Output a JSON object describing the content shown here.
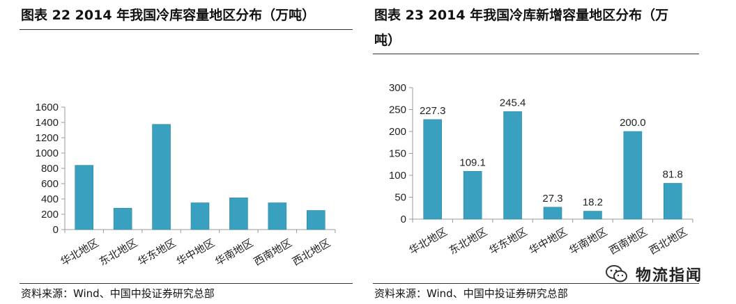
{
  "panels": [
    {
      "title_line1": "图表  22 2014 年我国冷库容量地区分布（万吨）",
      "title_line2": "",
      "source": "资料来源：Wind、中国中投证券研究总部"
    },
    {
      "title_line1": "图表  23  2014  年我国冷库新增容量地区分布（万",
      "title_line2": "吨）",
      "source": "资料来源：Wind、中国中投证券研究总部"
    }
  ],
  "watermark": {
    "text": "物流指闻",
    "icon": "wechat-icon"
  },
  "colors": {
    "bar": "#3aa0c0",
    "bar_edge": "#2e86a3",
    "axis": "#999999"
  },
  "chart_data": [
    {
      "type": "bar",
      "categories": [
        "华北地区",
        "东北地区",
        "华东地区",
        "华中地区",
        "华南地区",
        "西南地区",
        "西北地区"
      ],
      "values": [
        840,
        280,
        1375,
        350,
        415,
        350,
        250
      ],
      "yticks": [
        "0",
        "200",
        "400",
        "600",
        "800",
        "1000",
        "1200",
        "1400",
        "1600"
      ],
      "ylim": [
        0,
        1600
      ],
      "grid": false,
      "data_labels": false
    },
    {
      "type": "bar",
      "categories": [
        "华北地区",
        "东北地区",
        "华东地区",
        "华中地区",
        "华南地区",
        "西南地区",
        "西北地区"
      ],
      "values": [
        227.3,
        109.1,
        245.4,
        27.3,
        18.2,
        200.0,
        81.8
      ],
      "labels": [
        "227.3",
        "109.1",
        "245.4",
        "27.3",
        "18.2",
        "200.0",
        "81.8"
      ],
      "yticks": [
        "0",
        "50",
        "100",
        "150",
        "200",
        "250",
        "300"
      ],
      "ylim": [
        0,
        300
      ],
      "grid": false,
      "data_labels": true
    }
  ]
}
